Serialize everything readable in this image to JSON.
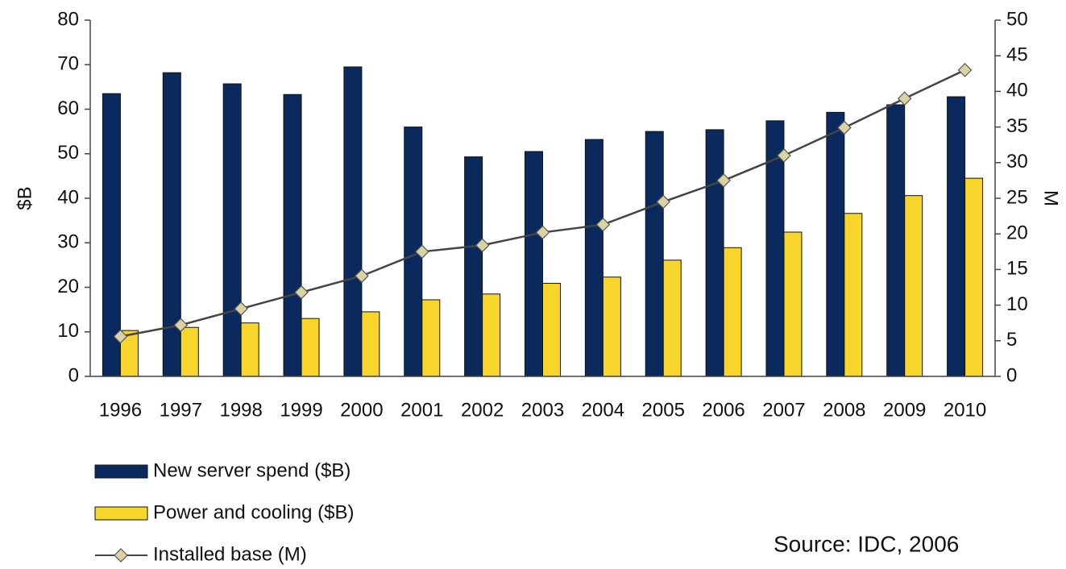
{
  "chart_data": {
    "type": "bar",
    "categories": [
      "1996",
      "1997",
      "1998",
      "1999",
      "2000",
      "2001",
      "2002",
      "2003",
      "2004",
      "2005",
      "2006",
      "2007",
      "2008",
      "2009",
      "2010"
    ],
    "series": [
      {
        "name": "New server spend ($B)",
        "color": "#0a2a5e",
        "values": [
          63.5,
          68.2,
          65.7,
          63.3,
          69.5,
          56,
          49.3,
          50.5,
          53.2,
          55,
          55.4,
          57.4,
          59.3,
          61,
          62.8
        ]
      },
      {
        "name": "Power and cooling ($B)",
        "color": "#f7d52b",
        "values": [
          10.3,
          11,
          12,
          13,
          14.5,
          17.2,
          18.5,
          20.9,
          22.3,
          26.1,
          28.9,
          32.4,
          36.6,
          40.6,
          44.5
        ]
      },
      {
        "name": "Installed base (M)",
        "type": "line",
        "axis": "y2",
        "color": "#444444",
        "marker_color": "#d8d2a4",
        "values": [
          5.6,
          7.2,
          9.5,
          11.8,
          14.1,
          17.5,
          18.4,
          20.2,
          21.3,
          24.5,
          27.5,
          31,
          34.9,
          39,
          43
        ]
      }
    ],
    "ylabel": "$B",
    "y2label": "M",
    "ylim": [
      0,
      80
    ],
    "yticks": [
      0,
      10,
      20,
      30,
      40,
      50,
      60,
      70,
      80
    ],
    "y2lim": [
      0,
      50
    ],
    "y2ticks": [
      0,
      5,
      10,
      15,
      20,
      25,
      30,
      35,
      40,
      45,
      50
    ],
    "annotation": "Source: IDC, 2006"
  }
}
